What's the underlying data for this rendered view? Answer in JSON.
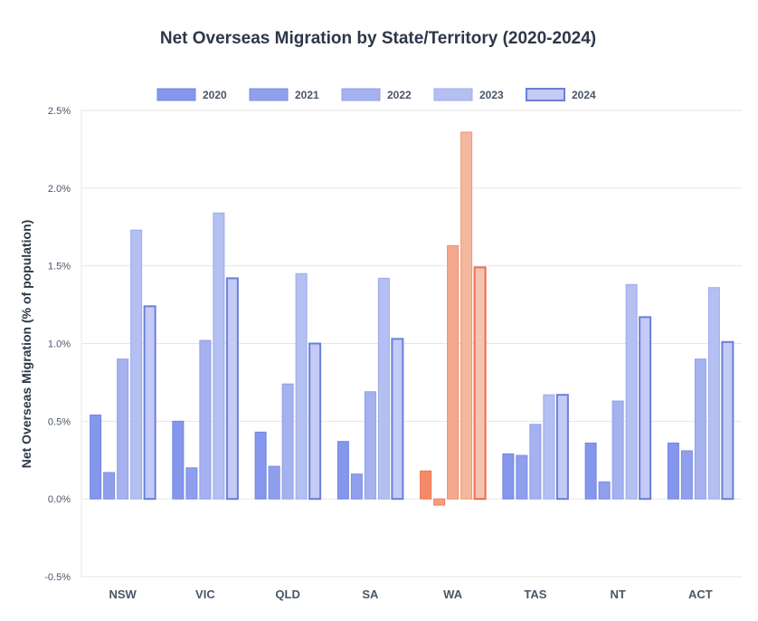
{
  "chart_data": {
    "type": "bar",
    "title": "Net Overseas Migration by State/Territory (2020-2024)",
    "xlabel": "",
    "ylabel": "Net Overseas Migration (% of population)",
    "categories": [
      "NSW",
      "VIC",
      "QLD",
      "SA",
      "WA",
      "TAS",
      "NT",
      "ACT"
    ],
    "highlight_category": "WA",
    "ylim": [
      -0.5,
      2.5
    ],
    "yticks": [
      -0.5,
      0.0,
      0.5,
      1.0,
      1.5,
      2.0,
      2.5
    ],
    "ytick_labels": [
      "-0.5%",
      "0.0%",
      "0.5%",
      "1.0%",
      "1.5%",
      "2.0%",
      "2.5%"
    ],
    "grid": true,
    "legend_position": "top-center",
    "series": [
      {
        "name": "2020",
        "values": [
          0.54,
          0.5,
          0.43,
          0.37,
          0.18,
          0.29,
          0.36,
          0.36
        ]
      },
      {
        "name": "2021",
        "values": [
          0.17,
          0.2,
          0.21,
          0.16,
          -0.04,
          0.28,
          0.11,
          0.31
        ]
      },
      {
        "name": "2022",
        "values": [
          0.9,
          1.02,
          0.74,
          0.69,
          1.63,
          0.48,
          0.63,
          0.9
        ]
      },
      {
        "name": "2023",
        "values": [
          1.73,
          1.84,
          1.45,
          1.42,
          2.36,
          0.67,
          1.38,
          1.36
        ]
      },
      {
        "name": "2024",
        "values": [
          1.24,
          1.42,
          1.0,
          1.03,
          1.49,
          0.67,
          1.17,
          1.01
        ]
      }
    ],
    "colors": {
      "series_fill": [
        "#8497ec",
        "#909fec",
        "#a5b2ef",
        "#b4bff2",
        "#c3cbf6"
      ],
      "series_stroke": [
        "#7085e2",
        "#7b8ce4",
        "#8f9fe8",
        "#9eabec",
        "#6c7fd8"
      ],
      "highlight_fill": [
        "#f58a68",
        "#f59f81",
        "#f5a98e",
        "#f5b69e",
        "#f5c4b3"
      ],
      "highlight_stroke": [
        "#ef7450",
        "#ef7e5b",
        "#ef8a6a",
        "#ef9577",
        "#ec6e49"
      ],
      "grid": "#e6e6e6",
      "axis": "#cccccc"
    }
  }
}
